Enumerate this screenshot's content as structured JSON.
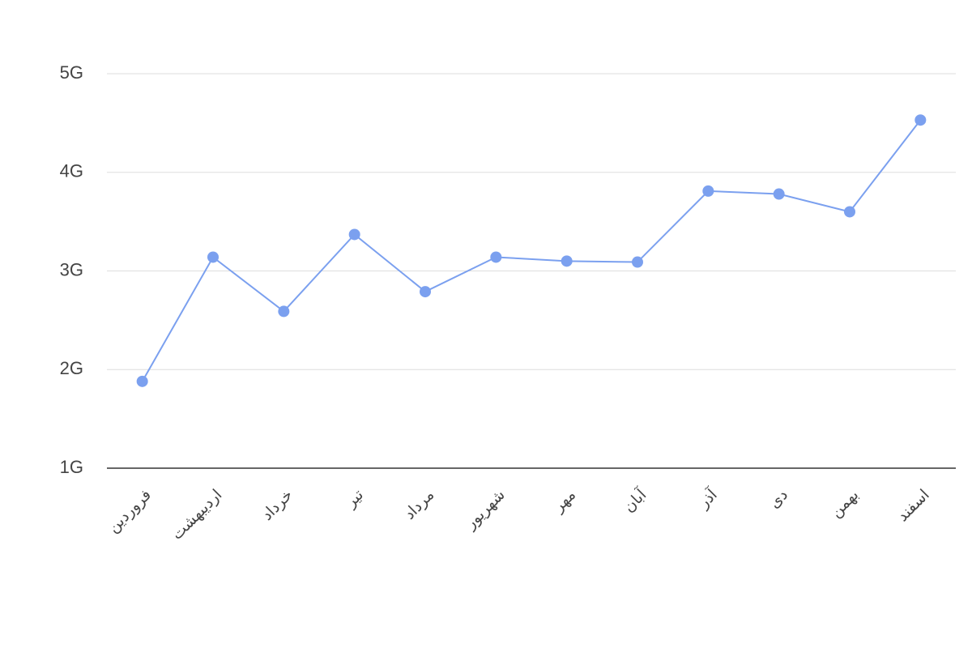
{
  "chart_data": {
    "type": "line",
    "categories": [
      "فروردین",
      "اردیبهشت",
      "خرداد",
      "تیر",
      "مرداد",
      "شهریور",
      "مهر",
      "آبان",
      "آذر",
      "دی",
      "بهمن",
      "اسفند"
    ],
    "values": [
      1.88,
      3.14,
      2.59,
      3.37,
      2.79,
      3.14,
      3.1,
      3.09,
      3.81,
      3.78,
      3.6,
      4.53
    ],
    "color": "#7ba0ef",
    "ylim": [
      1,
      5
    ],
    "yticks": [
      {
        "value": 1,
        "label": "1G"
      },
      {
        "value": 2,
        "label": "2G"
      },
      {
        "value": 3,
        "label": "3G"
      },
      {
        "value": 4,
        "label": "4G"
      },
      {
        "value": 5,
        "label": "5G"
      }
    ],
    "grid": true
  }
}
